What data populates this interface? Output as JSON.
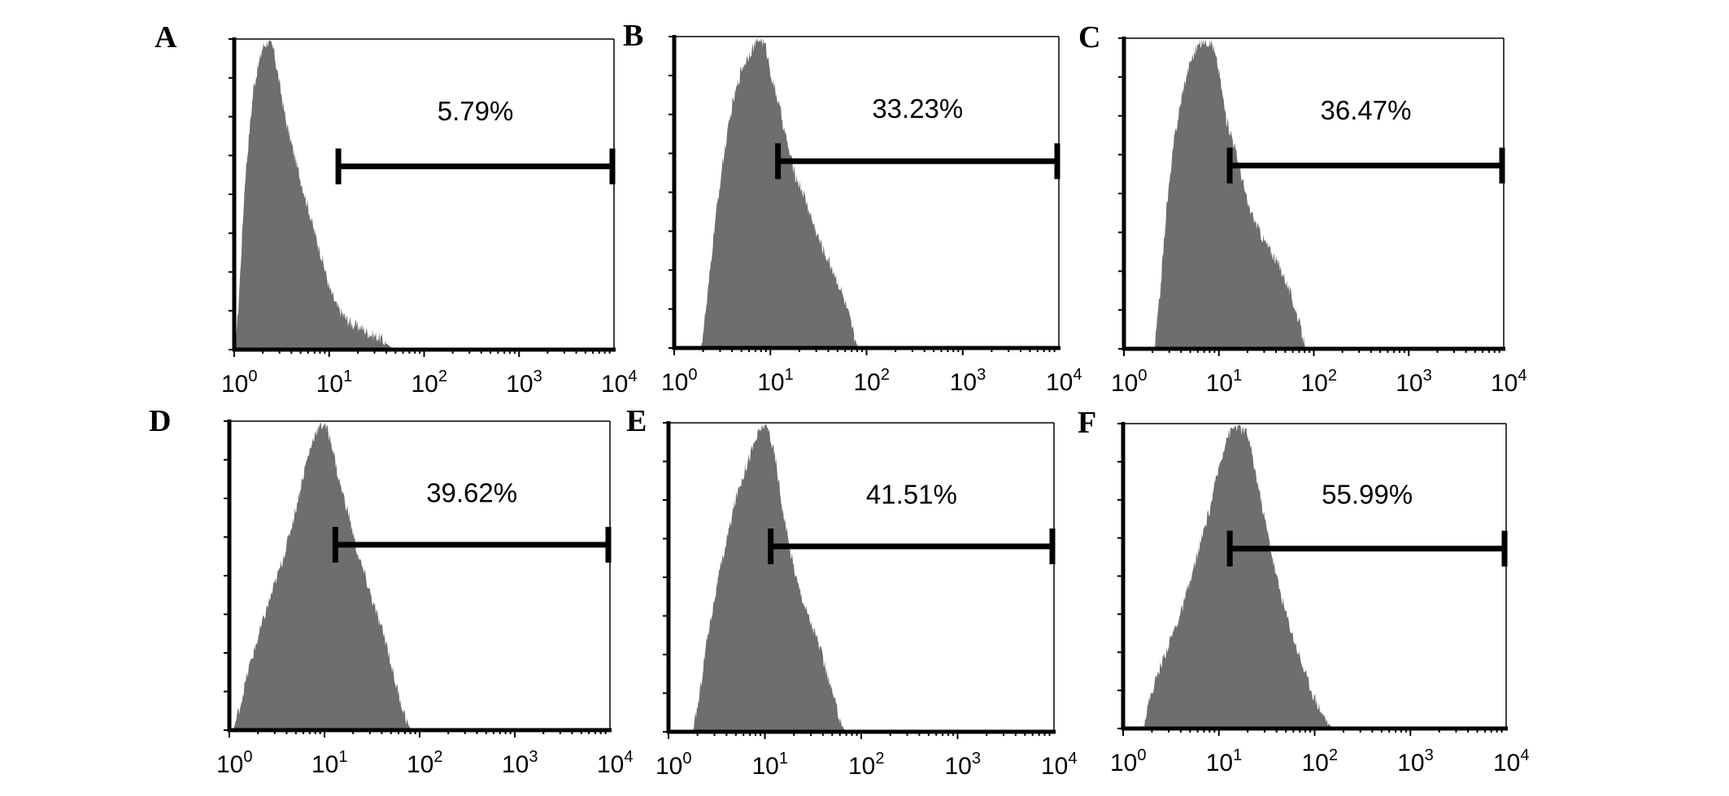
{
  "chart_data": [
    {
      "type": "area",
      "panel": "A",
      "x_scale": "log",
      "xlim": [
        1,
        10000
      ],
      "x_ticks": [
        {
          "base": "10",
          "exp": "0"
        },
        {
          "base": "10",
          "exp": "1"
        },
        {
          "base": "10",
          "exp": "2"
        },
        {
          "base": "10",
          "exp": "3"
        },
        {
          "base": "10",
          "exp": "4"
        }
      ],
      "histogram": {
        "x": [
          1.0,
          1.1,
          1.3,
          1.6,
          2.0,
          2.3,
          2.6,
          3.0,
          3.5,
          4.2,
          5.0,
          6.0,
          7.0,
          8.0,
          9.0,
          10.0,
          12.0,
          15.0,
          18.0,
          22.0,
          27.0,
          33.0,
          40.0,
          48.0
        ],
        "y": [
          0.0,
          0.12,
          0.55,
          0.85,
          0.98,
          1.0,
          0.97,
          0.86,
          0.74,
          0.64,
          0.55,
          0.46,
          0.38,
          0.32,
          0.26,
          0.2,
          0.14,
          0.1,
          0.08,
          0.07,
          0.05,
          0.04,
          0.02,
          0.0
        ]
      },
      "gate": {
        "start": 12.5,
        "end": 10000,
        "label": "5.79%"
      }
    },
    {
      "type": "area",
      "panel": "B",
      "x_scale": "log",
      "xlim": [
        1,
        10000
      ],
      "x_ticks": [
        {
          "base": "10",
          "exp": "0"
        },
        {
          "base": "10",
          "exp": "1"
        },
        {
          "base": "10",
          "exp": "2"
        },
        {
          "base": "10",
          "exp": "3"
        },
        {
          "base": "10",
          "exp": "4"
        }
      ],
      "histogram": {
        "x": [
          1.9,
          2.2,
          2.6,
          3.2,
          4.0,
          5.0,
          6.3,
          7.8,
          9.0,
          10.5,
          12.0,
          15.0,
          18.0,
          22.0,
          28.0,
          35.0,
          45.0,
          55.0,
          66.0,
          75.0,
          82.0
        ],
        "y": [
          0.0,
          0.15,
          0.38,
          0.6,
          0.78,
          0.9,
          0.96,
          1.0,
          0.97,
          0.86,
          0.8,
          0.66,
          0.56,
          0.5,
          0.4,
          0.32,
          0.25,
          0.18,
          0.1,
          0.03,
          0.0
        ]
      },
      "gate": {
        "start": 12.0,
        "end": 10000,
        "label": "33.23%"
      }
    },
    {
      "type": "area",
      "panel": "C",
      "x_scale": "log",
      "xlim": [
        1,
        10000
      ],
      "x_ticks": [
        {
          "base": "10",
          "exp": "0"
        },
        {
          "base": "10",
          "exp": "1"
        },
        {
          "base": "10",
          "exp": "2"
        },
        {
          "base": "10",
          "exp": "3"
        },
        {
          "base": "10",
          "exp": "4"
        }
      ],
      "histogram": {
        "x": [
          2.1,
          2.4,
          2.8,
          3.4,
          4.2,
          5.0,
          6.0,
          7.0,
          8.5,
          10.0,
          12.0,
          14.0,
          17.0,
          20.0,
          25.0,
          30.0,
          38.0,
          48.0,
          58.0,
          68.0,
          76.0,
          82.0
        ],
        "y": [
          0.0,
          0.18,
          0.45,
          0.68,
          0.84,
          0.93,
          0.98,
          1.0,
          0.99,
          0.9,
          0.74,
          0.68,
          0.57,
          0.47,
          0.4,
          0.35,
          0.3,
          0.24,
          0.17,
          0.1,
          0.04,
          0.0
        ]
      },
      "gate": {
        "start": 13.0,
        "end": 10000,
        "label": "36.47%"
      }
    },
    {
      "type": "area",
      "panel": "D",
      "x_scale": "log",
      "xlim": [
        1,
        10000
      ],
      "x_ticks": [
        {
          "base": "10",
          "exp": "0"
        },
        {
          "base": "10",
          "exp": "1"
        },
        {
          "base": "10",
          "exp": "2"
        },
        {
          "base": "10",
          "exp": "3"
        },
        {
          "base": "10",
          "exp": "4"
        }
      ],
      "histogram": {
        "x": [
          1.1,
          1.3,
          1.6,
          2.0,
          2.5,
          3.2,
          4.0,
          5.0,
          6.3,
          8.0,
          10.0,
          12.0,
          14.0,
          18.0,
          22.0,
          28.0,
          35.0,
          45.0,
          55.0,
          65.0,
          75.0,
          82.0
        ],
        "y": [
          0.0,
          0.08,
          0.2,
          0.3,
          0.4,
          0.5,
          0.6,
          0.72,
          0.86,
          0.97,
          1.0,
          0.93,
          0.82,
          0.7,
          0.58,
          0.48,
          0.38,
          0.28,
          0.16,
          0.08,
          0.02,
          0.0
        ]
      },
      "gate": {
        "start": 13.0,
        "end": 10000,
        "label": "39.62%"
      }
    },
    {
      "type": "area",
      "panel": "E",
      "x_scale": "log",
      "xlim": [
        1,
        10000
      ],
      "x_ticks": [
        {
          "base": "10",
          "exp": "0"
        },
        {
          "base": "10",
          "exp": "1"
        },
        {
          "base": "10",
          "exp": "2"
        },
        {
          "base": "10",
          "exp": "3"
        },
        {
          "base": "10",
          "exp": "4"
        }
      ],
      "histogram": {
        "x": [
          1.8,
          2.1,
          2.5,
          3.2,
          4.0,
          5.0,
          6.3,
          8.0,
          9.5,
          11.0,
          13.0,
          15.0,
          18.0,
          22.0,
          28.0,
          35.0,
          45.0,
          55.0,
          62.0,
          68.0
        ],
        "y": [
          0.0,
          0.12,
          0.3,
          0.48,
          0.62,
          0.76,
          0.86,
          0.95,
          1.0,
          0.98,
          0.88,
          0.74,
          0.6,
          0.48,
          0.38,
          0.3,
          0.18,
          0.08,
          0.03,
          0.0
        ]
      },
      "gate": {
        "start": 11.5,
        "end": 10000,
        "label": "41.51%"
      }
    },
    {
      "type": "area",
      "panel": "F",
      "x_scale": "log",
      "xlim": [
        1,
        10000
      ],
      "x_ticks": [
        {
          "base": "10",
          "exp": "0"
        },
        {
          "base": "10",
          "exp": "1"
        },
        {
          "base": "10",
          "exp": "2"
        },
        {
          "base": "10",
          "exp": "3"
        },
        {
          "base": "10",
          "exp": "4"
        }
      ],
      "histogram": {
        "x": [
          1.6,
          1.9,
          2.3,
          3.0,
          4.0,
          5.0,
          6.3,
          8.0,
          10.0,
          12.0,
          15.0,
          20.0,
          25.0,
          32.0,
          40.0,
          50.0,
          63.0,
          80.0,
          100.0,
          125.0,
          145.0,
          160.0
        ],
        "y": [
          0.0,
          0.1,
          0.18,
          0.28,
          0.38,
          0.48,
          0.6,
          0.72,
          0.86,
          0.96,
          1.0,
          0.97,
          0.82,
          0.65,
          0.5,
          0.38,
          0.28,
          0.18,
          0.1,
          0.04,
          0.01,
          0.0
        ]
      },
      "gate": {
        "start": 13.0,
        "end": 10000,
        "label": "55.99%"
      }
    }
  ],
  "colors": {
    "fill": "#6e6e6e",
    "axis": "#000000",
    "background": "#ffffff"
  }
}
